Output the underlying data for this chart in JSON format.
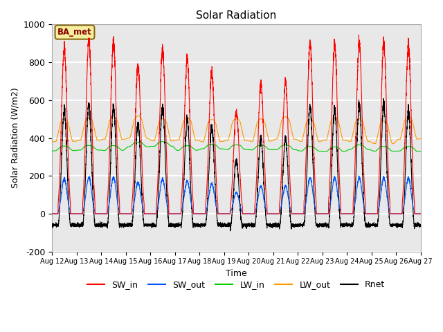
{
  "title": "Solar Radiation",
  "ylabel": "Solar Radiation (W/m2)",
  "xlabel": "Time",
  "ylim": [
    -200,
    1000
  ],
  "n_days": 15,
  "points_per_day": 288,
  "background_color": "#e8e8e8",
  "grid_color": "white",
  "annotation_text": "BA_met",
  "annotation_bg": "#f5f0a0",
  "annotation_border": "#8B6914",
  "series": {
    "SW_in": {
      "color": "#ff0000",
      "lw": 0.8
    },
    "SW_out": {
      "color": "#0055ff",
      "lw": 0.8
    },
    "LW_in": {
      "color": "#00cc00",
      "lw": 0.8
    },
    "LW_out": {
      "color": "#ff9900",
      "lw": 0.8
    },
    "Rnet": {
      "color": "#000000",
      "lw": 0.8
    }
  },
  "sw_in_peaks": [
    870,
    920,
    910,
    780,
    870,
    820,
    750,
    540,
    680,
    690,
    900,
    900,
    900,
    900,
    880
  ],
  "sw_out_ratio": 0.21,
  "lw_in_base": 340,
  "lw_out_base": 390,
  "rnet_night": -70,
  "xtick_labels": [
    "Aug 12",
    "Aug 13",
    "Aug 14",
    "Aug 15",
    "Aug 16",
    "Aug 17",
    "Aug 18",
    "Aug 19",
    "Aug 20",
    "Aug 21",
    "Aug 22",
    "Aug 23",
    "Aug 24",
    "Aug 25",
    "Aug 26",
    "Aug 27"
  ],
  "ytick_labels": [
    -200,
    0,
    200,
    400,
    600,
    800,
    1000
  ]
}
